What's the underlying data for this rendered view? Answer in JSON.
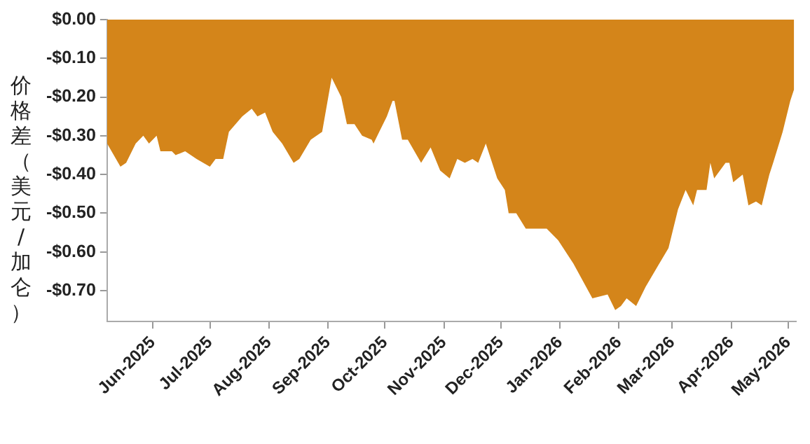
{
  "chart_data": {
    "type": "area",
    "ylabel": "价格差（美元/加仑）",
    "xlim": [
      "2025-05-08",
      "2026-05-05"
    ],
    "ylim": [
      -0.78,
      0
    ],
    "xticks": [
      {
        "value": "2025-06-01",
        "label": "Jun-2025"
      },
      {
        "value": "2025-07-01",
        "label": "Jul-2025"
      },
      {
        "value": "2025-08-01",
        "label": "Aug-2025"
      },
      {
        "value": "2025-09-01",
        "label": "Sep-2025"
      },
      {
        "value": "2025-10-01",
        "label": "Oct-2025"
      },
      {
        "value": "2025-11-01",
        "label": "Nov-2025"
      },
      {
        "value": "2025-12-01",
        "label": "Dec-2025"
      },
      {
        "value": "2026-01-01",
        "label": "Jan-2026"
      },
      {
        "value": "2026-02-01",
        "label": "Feb-2026"
      },
      {
        "value": "2026-03-01",
        "label": "Mar-2026"
      },
      {
        "value": "2026-04-01",
        "label": "Apr-2026"
      },
      {
        "value": "2026-05-01",
        "label": "May-2026"
      }
    ],
    "yticks": [
      {
        "value": 0,
        "label": "$0.00"
      },
      {
        "value": -0.1,
        "label": "-$0.10"
      },
      {
        "value": -0.2,
        "label": "-$0.20"
      },
      {
        "value": -0.3,
        "label": "-$0.30"
      },
      {
        "value": -0.4,
        "label": "-$0.40"
      },
      {
        "value": -0.5,
        "label": "-$0.50"
      },
      {
        "value": -0.6,
        "label": "-$0.60"
      },
      {
        "value": -0.7,
        "label": "-$0.70"
      }
    ],
    "grid": false,
    "legend": false,
    "marker": "none",
    "x": [
      "2025-05-08",
      "2025-05-15",
      "2025-05-18",
      "2025-05-23",
      "2025-05-27",
      "2025-05-30",
      "2025-06-03",
      "2025-06-05",
      "2025-06-11",
      "2025-06-13",
      "2025-06-18",
      "2025-06-24",
      "2025-07-01",
      "2025-07-04",
      "2025-07-08",
      "2025-07-11",
      "2025-07-18",
      "2025-07-23",
      "2025-07-26",
      "2025-07-30",
      "2025-08-03",
      "2025-08-08",
      "2025-08-14",
      "2025-08-17",
      "2025-08-23",
      "2025-08-29",
      "2025-09-03",
      "2025-09-08",
      "2025-09-11",
      "2025-09-15",
      "2025-09-19",
      "2025-09-24",
      "2025-09-25",
      "2025-09-28",
      "2025-10-02",
      "2025-10-05",
      "2025-10-06",
      "2025-10-10",
      "2025-10-13",
      "2025-10-20",
      "2025-10-25",
      "2025-10-30",
      "2025-11-04",
      "2025-11-08",
      "2025-11-12",
      "2025-11-16",
      "2025-11-19",
      "2025-11-23",
      "2025-11-29",
      "2025-12-03",
      "2025-12-05",
      "2025-12-09",
      "2025-12-14",
      "2025-12-18",
      "2025-12-25",
      "2025-12-31",
      "2026-01-08",
      "2026-01-18",
      "2026-01-26",
      "2026-01-30",
      "2026-02-02",
      "2026-02-05",
      "2026-02-10",
      "2026-02-15",
      "2026-02-21",
      "2026-02-27",
      "2026-03-04",
      "2026-03-08",
      "2026-03-12",
      "2026-03-14",
      "2026-03-19",
      "2026-03-21",
      "2026-03-23",
      "2026-03-29",
      "2026-03-31",
      "2026-04-02",
      "2026-04-07",
      "2026-04-10",
      "2026-04-14",
      "2026-04-17",
      "2026-04-21",
      "2026-04-23",
      "2026-04-28",
      "2026-05-02",
      "2026-05-04"
    ],
    "series": [
      {
        "color": "#d4851a",
        "values": [
          -0.32,
          -0.38,
          -0.37,
          -0.32,
          -0.3,
          -0.32,
          -0.3,
          -0.34,
          -0.34,
          -0.35,
          -0.34,
          -0.36,
          -0.38,
          -0.36,
          -0.36,
          -0.29,
          -0.25,
          -0.23,
          -0.25,
          -0.24,
          -0.29,
          -0.32,
          -0.37,
          -0.36,
          -0.31,
          -0.29,
          -0.15,
          -0.2,
          -0.27,
          -0.27,
          -0.3,
          -0.31,
          -0.32,
          -0.29,
          -0.25,
          -0.21,
          -0.21,
          -0.31,
          -0.31,
          -0.37,
          -0.33,
          -0.39,
          -0.41,
          -0.36,
          -0.37,
          -0.36,
          -0.37,
          -0.32,
          -0.41,
          -0.44,
          -0.5,
          -0.5,
          -0.54,
          -0.54,
          -0.54,
          -0.57,
          -0.63,
          -0.72,
          -0.71,
          -0.75,
          -0.74,
          -0.72,
          -0.74,
          -0.69,
          -0.64,
          -0.59,
          -0.49,
          -0.44,
          -0.48,
          -0.44,
          -0.44,
          -0.37,
          -0.41,
          -0.37,
          -0.37,
          -0.42,
          -0.4,
          -0.48,
          -0.47,
          -0.48,
          -0.4,
          -0.37,
          -0.29,
          -0.21,
          -0.18
        ]
      }
    ]
  }
}
